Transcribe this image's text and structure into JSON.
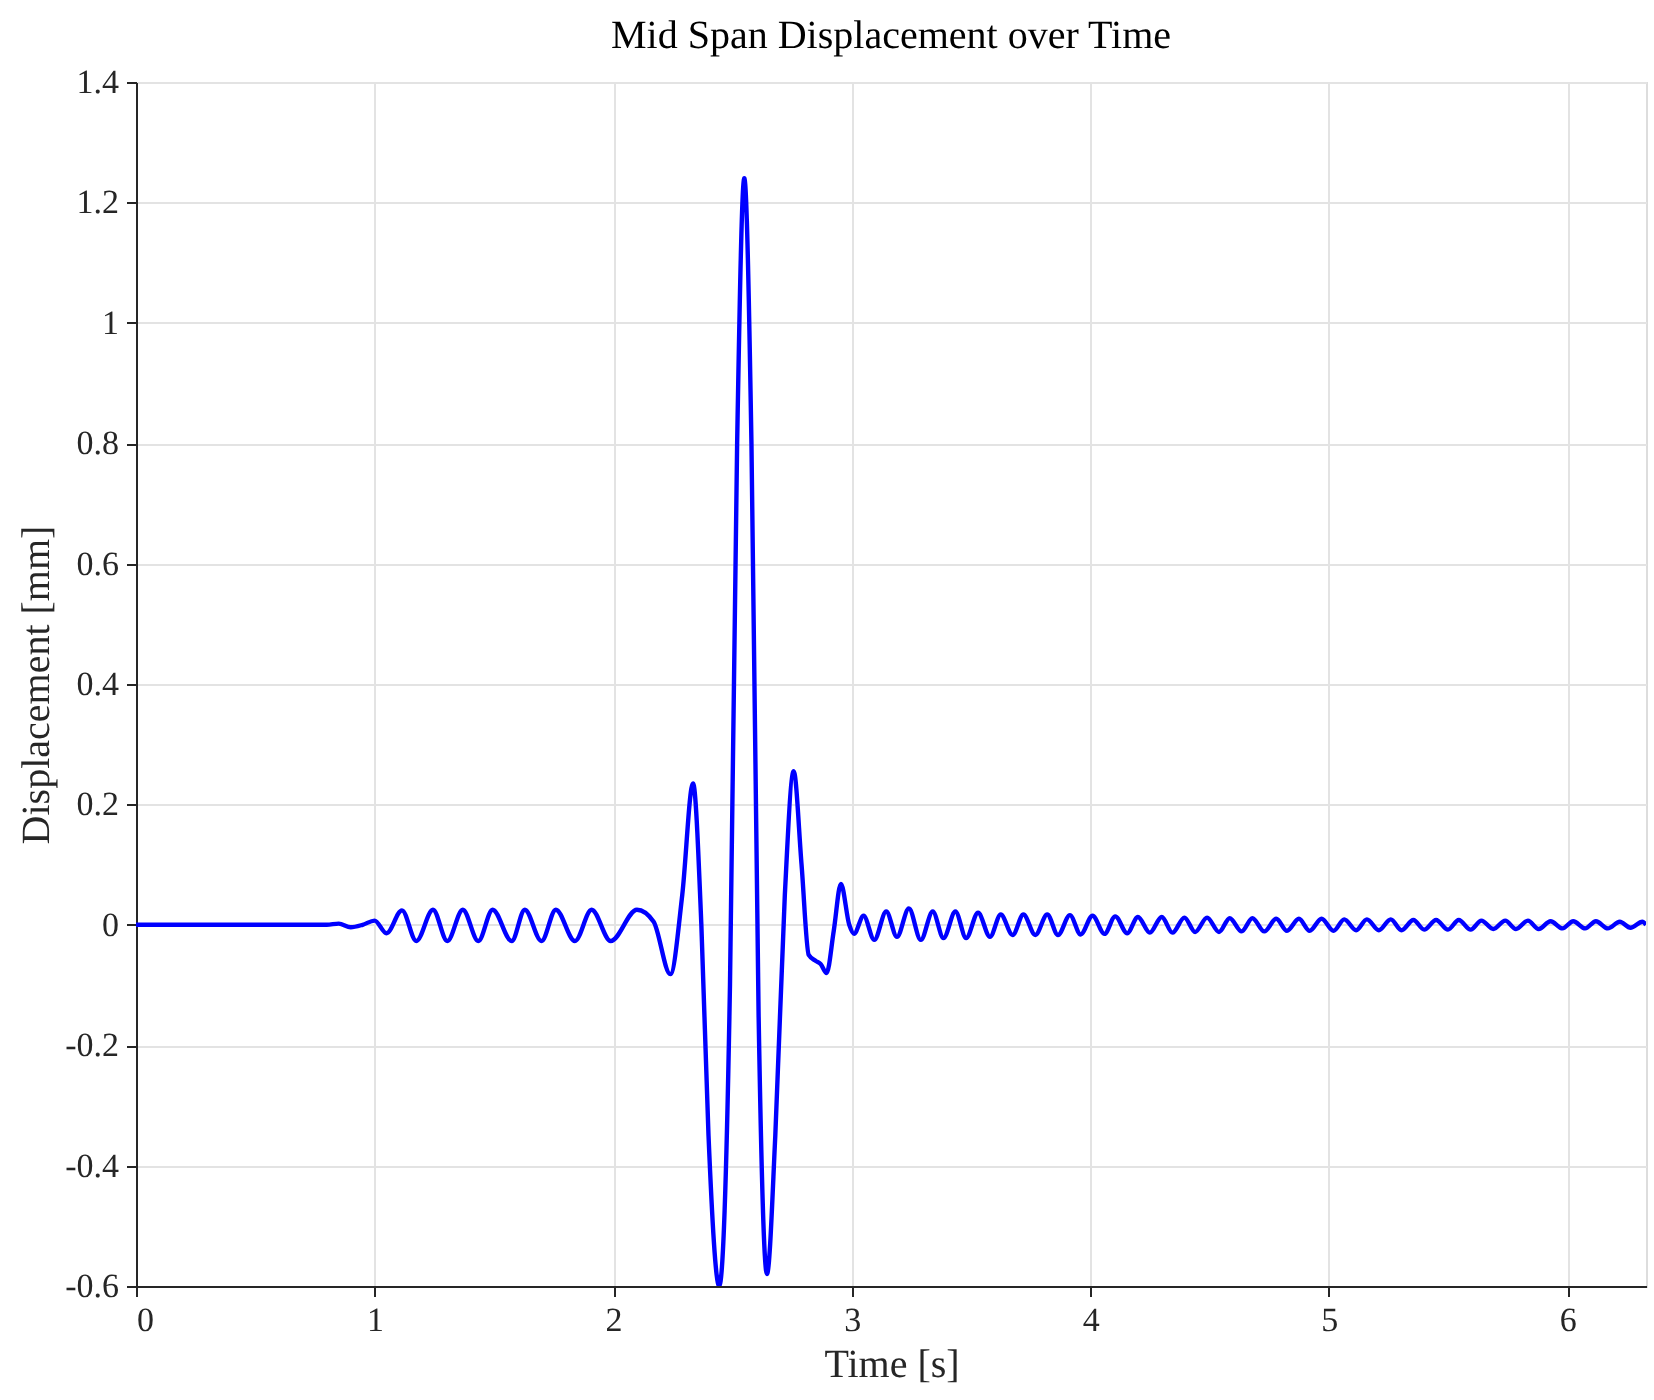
{
  "chart_data": {
    "type": "line",
    "title": "Mid Span Displacement over Time",
    "xlabel": "Time [s]",
    "ylabel": "Displacement [mm]",
    "xlim": [
      0,
      6.33
    ],
    "xticks": [
      0,
      1,
      2,
      3,
      4,
      5,
      6
    ],
    "ylim": [
      -0.6,
      1.4
    ],
    "yticks": [
      -0.6,
      -0.4,
      -0.2,
      0,
      0.2,
      0.4,
      0.6,
      0.8,
      1,
      1.2,
      1.4
    ],
    "grid": true,
    "legend": false,
    "marker": "none",
    "line_style": "solid",
    "series": [
      {
        "color": "#0000ff",
        "x": [
          0,
          0.8,
          0.85,
          0.9,
          0.95,
          1.0,
          1.05,
          1.115,
          1.175,
          1.245,
          1.305,
          1.37,
          1.435,
          1.495,
          1.575,
          1.63,
          1.7,
          1.76,
          1.84,
          1.91,
          1.99,
          2.1,
          2.17,
          2.24,
          2.29,
          2.335,
          2.37,
          2.4,
          2.445,
          2.49,
          2.52,
          2.55,
          2.58,
          2.61,
          2.645,
          2.68,
          2.72,
          2.757,
          2.79,
          2.82,
          2.85,
          2.87,
          2.895,
          2.925,
          2.955,
          2.99,
          3.01,
          3.05,
          3.095,
          3.145,
          3.19,
          3.24,
          3.29,
          3.34,
          3.385,
          3.435,
          3.48,
          3.53,
          3.58,
          3.625,
          3.675,
          3.72,
          3.77,
          3.82,
          3.865,
          3.915,
          3.96,
          4.01,
          4.06,
          4.105,
          4.155,
          4.2,
          4.25,
          4.3,
          4.345,
          4.395,
          4.44,
          4.49,
          4.54,
          4.585,
          4.635,
          4.68,
          4.73,
          4.78,
          4.825,
          4.875,
          4.92,
          4.97,
          5.02,
          5.065,
          5.115,
          5.16,
          5.21,
          5.26,
          5.305,
          5.355,
          5.4,
          5.45,
          5.5,
          5.545,
          5.595,
          5.64,
          5.69,
          5.74,
          5.785,
          5.835,
          5.88,
          5.93,
          5.98,
          6.025,
          6.075,
          6.12,
          6.17,
          6.22,
          6.265,
          6.315,
          6.33
        ],
        "values": [
          0,
          0,
          0.002,
          -0.004,
          0.0,
          0.007,
          -0.014,
          0.024,
          -0.027,
          0.025,
          -0.027,
          0.025,
          -0.027,
          0.025,
          -0.027,
          0.025,
          -0.027,
          0.025,
          -0.027,
          0.025,
          -0.027,
          0.025,
          0.005,
          -0.082,
          0.05,
          0.235,
          0.0,
          -0.35,
          -0.6,
          -0.1,
          0.8,
          1.24,
          0.8,
          -0.15,
          -0.58,
          -0.35,
          0.05,
          0.255,
          0.1,
          -0.05,
          -0.06,
          -0.065,
          -0.08,
          -0.01,
          0.068,
          0.0,
          -0.015,
          0.015,
          -0.025,
          0.022,
          -0.02,
          0.027,
          -0.025,
          0.022,
          -0.022,
          0.022,
          -0.022,
          0.02,
          -0.02,
          0.017,
          -0.017,
          0.017,
          -0.017,
          0.017,
          -0.017,
          0.016,
          -0.016,
          0.015,
          -0.015,
          0.014,
          -0.014,
          0.013,
          -0.013,
          0.013,
          -0.013,
          0.012,
          -0.012,
          0.012,
          -0.012,
          0.011,
          -0.011,
          0.011,
          -0.011,
          0.01,
          -0.01,
          0.01,
          -0.01,
          0.01,
          -0.01,
          0.009,
          -0.009,
          0.009,
          -0.009,
          0.009,
          -0.009,
          0.008,
          -0.008,
          0.008,
          -0.008,
          0.008,
          -0.008,
          0.007,
          -0.007,
          0.007,
          -0.007,
          0.007,
          -0.007,
          0.006,
          -0.006,
          0.006,
          -0.006,
          0.006,
          -0.006,
          0.005,
          -0.005,
          0.005,
          0.0
        ]
      }
    ]
  }
}
